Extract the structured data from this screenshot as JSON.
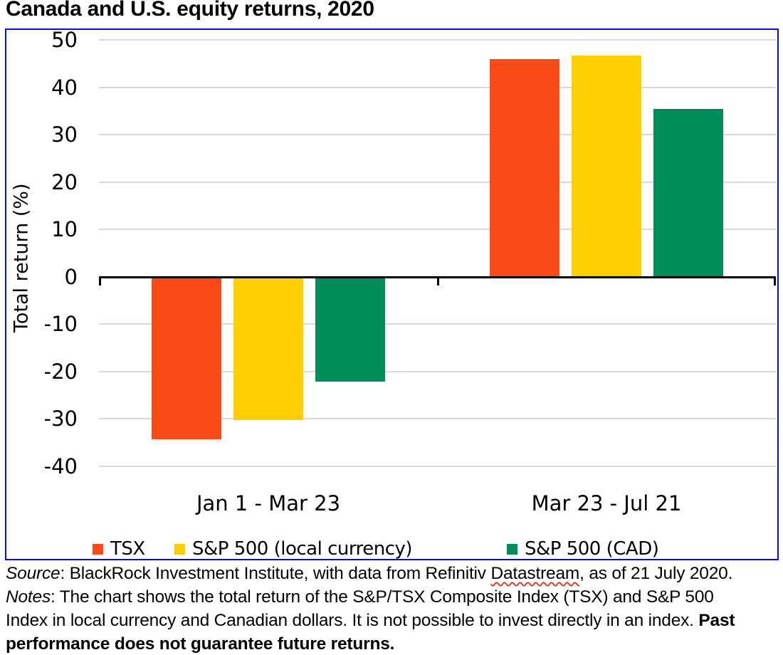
{
  "chart_data": {
    "type": "bar",
    "title": "Canada and U.S. equity returns, 2020",
    "categories": [
      "Jan 1 - Mar 23",
      "Mar 23 - Jul 21"
    ],
    "series": [
      {
        "name": "TSX",
        "color": "#FB4A17",
        "values": [
          -34,
          45.9
        ]
      },
      {
        "name": "S&P 500 (local currency)",
        "color": "#FFCE00",
        "values": [
          -30,
          46.7
        ]
      },
      {
        "name": "S&P 500 (CAD)",
        "color": "#008D5A",
        "values": [
          -21.8,
          35.4
        ]
      }
    ],
    "xlabel": "",
    "ylabel": "Total return (%)",
    "ylim": [
      -40,
      50
    ],
    "yticks": [
      50,
      40,
      30,
      20,
      10,
      0,
      -10,
      -20,
      -30,
      -40
    ],
    "grid": true,
    "legend_position": "bottom",
    "frame_color": "#0909EC",
    "gridline_color": "#d9d9d9"
  },
  "footer": {
    "line1": {
      "source_label": "Source",
      "text_a": ": BlackRock Investment Institute, with data from Refinitiv ",
      "misspelled_word": "Datastream",
      "text_b": ", as of 21 July 2020."
    },
    "line2": {
      "notes_label": "Notes",
      "text_a": ": The chart shows the total return of the S&P/TSX Composite Index (TSX) and S&P 500"
    },
    "line3": {
      "text_a": "Index in local currency and Canadian dollars. It is not possible to invest directly in an index. ",
      "bold_a": "Past"
    },
    "line4": {
      "bold_a": "performance does not guarantee future returns."
    }
  }
}
